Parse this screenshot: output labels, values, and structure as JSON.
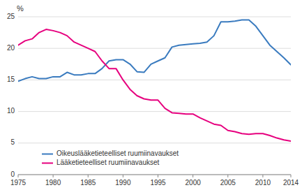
{
  "chart_data": {
    "type": "line",
    "y_label": "%",
    "x": [
      1975,
      1976,
      1977,
      1978,
      1979,
      1980,
      1981,
      1982,
      1983,
      1984,
      1985,
      1986,
      1987,
      1988,
      1989,
      1990,
      1991,
      1992,
      1993,
      1994,
      1995,
      1996,
      1997,
      1998,
      1999,
      2000,
      2001,
      2002,
      2003,
      2004,
      2005,
      2006,
      2007,
      2008,
      2009,
      2010,
      2011,
      2012,
      2013,
      2014
    ],
    "series": [
      {
        "name": "Oikeuslääketieteelliset ruumiinavaukset",
        "color": "#3a7bbf",
        "values": [
          14.8,
          15.2,
          15.5,
          15.2,
          15.2,
          15.5,
          15.5,
          16.2,
          15.8,
          15.8,
          16.0,
          16.0,
          16.8,
          18.0,
          18.2,
          18.2,
          17.5,
          16.3,
          16.2,
          17.5,
          18.0,
          18.5,
          20.2,
          20.5,
          20.6,
          20.7,
          20.8,
          21.0,
          22.0,
          24.2,
          24.2,
          24.3,
          24.5,
          24.5,
          23.5,
          22.0,
          20.5,
          19.5,
          18.5,
          17.4
        ]
      },
      {
        "name": "Lääketieteelliset ruumiinavaukset",
        "color": "#e6007e",
        "values": [
          20.5,
          21.2,
          21.5,
          22.5,
          23.0,
          22.8,
          22.5,
          22.0,
          21.0,
          20.5,
          20.0,
          19.5,
          18.0,
          16.8,
          16.8,
          15.0,
          13.5,
          12.5,
          12.0,
          11.8,
          11.8,
          10.5,
          9.8,
          9.7,
          9.6,
          9.6,
          9.0,
          8.5,
          8.0,
          7.8,
          7.0,
          6.8,
          6.5,
          6.4,
          6.5,
          6.5,
          6.2,
          5.8,
          5.5,
          5.3
        ]
      }
    ],
    "xlim": [
      1975,
      2014
    ],
    "ylim": [
      0,
      25
    ],
    "xticks": [
      1975,
      1980,
      1985,
      1990,
      1995,
      2000,
      2005,
      2010,
      2014
    ],
    "yticks": [
      0,
      5,
      10,
      15,
      20,
      25
    ],
    "grid": true,
    "legend": "lower left"
  }
}
